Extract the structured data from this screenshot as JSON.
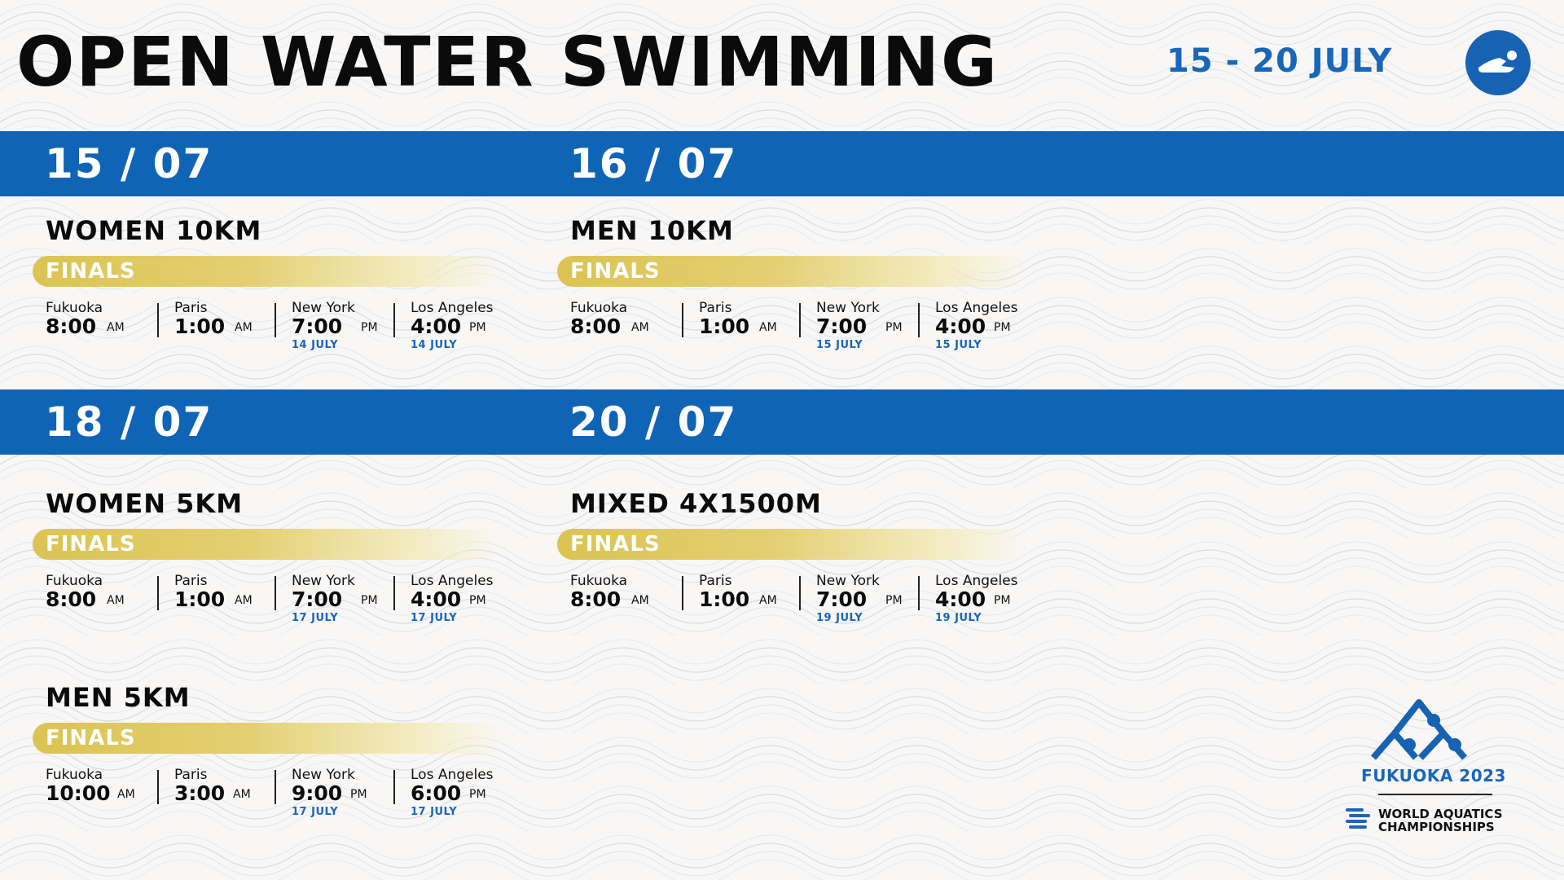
{
  "header": {
    "title": "OPEN WATER SWIMMING",
    "date_range": "15 - 20 JULY"
  },
  "bands": [
    {
      "left_date": "15 / 07",
      "right_date": "16 / 07"
    },
    {
      "left_date": "18 / 07",
      "right_date": "20 / 07"
    }
  ],
  "events": [
    {
      "title": "WOMEN 10KM",
      "stage": "FINALS",
      "times": [
        {
          "city": "Fukuoka",
          "time": "8:00",
          "ampm": "AM",
          "note": ""
        },
        {
          "city": "Paris",
          "time": "1:00",
          "ampm": "AM",
          "note": ""
        },
        {
          "city": "New York",
          "time": "7:00",
          "ampm": "PM",
          "note": "14 JULY"
        },
        {
          "city": "Los Angeles",
          "time": "4:00",
          "ampm": "PM",
          "note": "14 JULY"
        }
      ]
    },
    {
      "title": "MEN 10KM",
      "stage": "FINALS",
      "times": [
        {
          "city": "Fukuoka",
          "time": "8:00",
          "ampm": "AM",
          "note": ""
        },
        {
          "city": "Paris",
          "time": "1:00",
          "ampm": "AM",
          "note": ""
        },
        {
          "city": "New York",
          "time": "7:00",
          "ampm": "PM",
          "note": "15 JULY"
        },
        {
          "city": "Los Angeles",
          "time": "4:00",
          "ampm": "PM",
          "note": "15 JULY"
        }
      ]
    },
    {
      "title": "WOMEN 5KM",
      "stage": "FINALS",
      "times": [
        {
          "city": "Fukuoka",
          "time": "8:00",
          "ampm": "AM",
          "note": ""
        },
        {
          "city": "Paris",
          "time": "1:00",
          "ampm": "AM",
          "note": ""
        },
        {
          "city": "New York",
          "time": "7:00",
          "ampm": "PM",
          "note": "17 JULY"
        },
        {
          "city": "Los Angeles",
          "time": "4:00",
          "ampm": "PM",
          "note": "17 JULY"
        }
      ]
    },
    {
      "title": "MIXED 4X1500M",
      "stage": "FINALS",
      "times": [
        {
          "city": "Fukuoka",
          "time": "8:00",
          "ampm": "AM",
          "note": ""
        },
        {
          "city": "Paris",
          "time": "1:00",
          "ampm": "AM",
          "note": ""
        },
        {
          "city": "New York",
          "time": "7:00",
          "ampm": "PM",
          "note": "19 JULY"
        },
        {
          "city": "Los Angeles",
          "time": "4:00",
          "ampm": "PM",
          "note": "19 JULY"
        }
      ]
    },
    {
      "title": "MEN 5KM",
      "stage": "FINALS",
      "times": [
        {
          "city": "Fukuoka",
          "time": "10:00",
          "ampm": "AM",
          "note": ""
        },
        {
          "city": "Paris",
          "time": "3:00",
          "ampm": "AM",
          "note": ""
        },
        {
          "city": "New York",
          "time": "9:00",
          "ampm": "PM",
          "note": "17 JULY"
        },
        {
          "city": "Los Angeles",
          "time": "6:00",
          "ampm": "PM",
          "note": "17 JULY"
        }
      ]
    }
  ],
  "logo": {
    "event_name": "FUKUOKA 2023",
    "org_line1": "WORLD AQUATICS",
    "org_line2": "CHAMPIONSHIPS"
  },
  "colors": {
    "brand_blue": "#1064b5",
    "accent_gold": "#dbc353",
    "background": "#f8f7f5"
  },
  "icons": [
    "swimmer-icon",
    "wave-pattern",
    "fukuoka-2023-emblem",
    "world-aquatics-mark"
  ]
}
